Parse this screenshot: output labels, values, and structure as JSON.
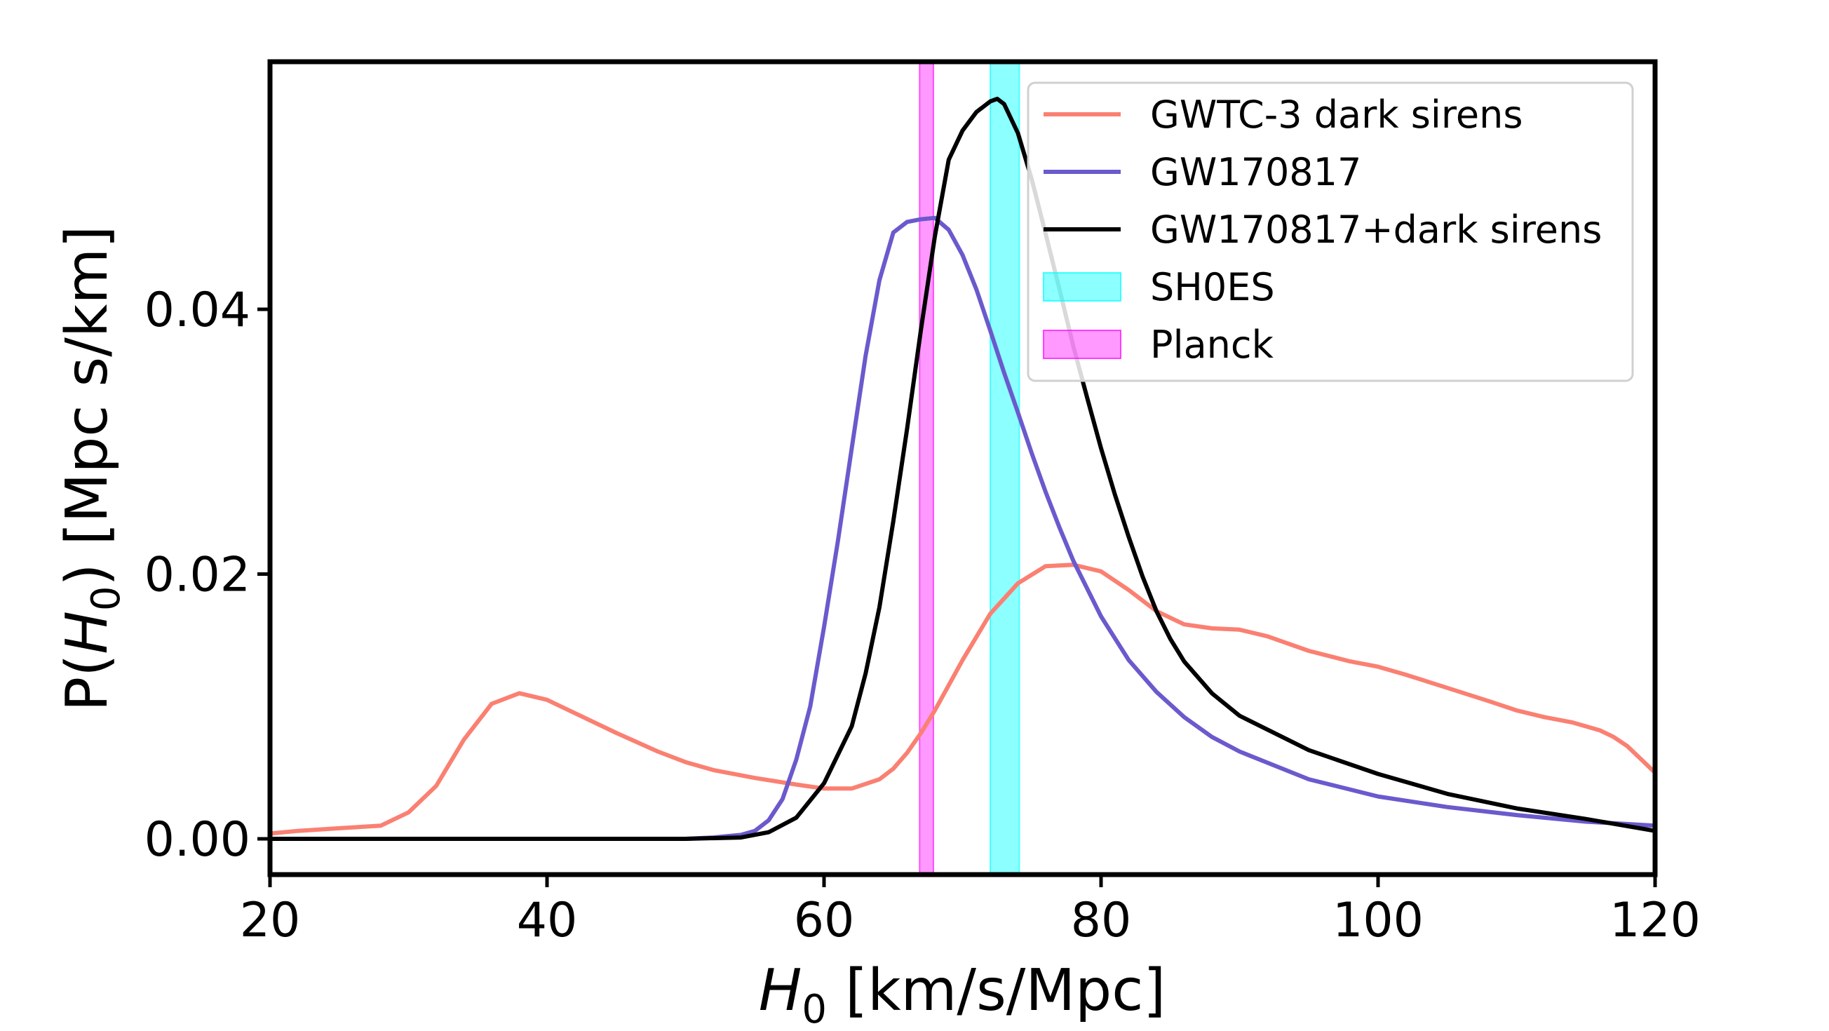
{
  "chart_data": {
    "type": "line",
    "title": "",
    "xlabel_symbol": "H",
    "xlabel_subscript": "0",
    "xlabel_unit": " [km/s/Mpc]",
    "ylabel_prefix": "P(",
    "ylabel_symbol": "H",
    "ylabel_subscript": "0",
    "ylabel_suffix": ") [Mpc s/km]",
    "xlim": [
      20,
      120
    ],
    "ylim": [
      -0.0027,
      0.0587
    ],
    "xticks": [
      20,
      40,
      60,
      80,
      100,
      120
    ],
    "xtick_labels": [
      "20",
      "40",
      "60",
      "80",
      "100",
      "120"
    ],
    "yticks": [
      0.0,
      0.02,
      0.04
    ],
    "ytick_labels": [
      "0.00",
      "0.02",
      "0.04"
    ],
    "legend_position": "top-right",
    "bands": [
      {
        "name": "SH0ES",
        "xmin": 72.0,
        "xmax": 74.1,
        "color": "#00ffff",
        "alpha": 0.45
      },
      {
        "name": "Planck",
        "xmin": 66.9,
        "xmax": 67.9,
        "color": "#ff00ff",
        "alpha": 0.4
      }
    ],
    "series": [
      {
        "name": "GWTC-3 dark sirens",
        "color": "#fa8072",
        "x": [
          20,
          22,
          25,
          28,
          30,
          32,
          34,
          36,
          38,
          40,
          42,
          45,
          48,
          50,
          52,
          55,
          58,
          60,
          62,
          64,
          65,
          66,
          67,
          68,
          70,
          72,
          74,
          76,
          78,
          80,
          82,
          84,
          86,
          88,
          90,
          92,
          95,
          98,
          100,
          102,
          105,
          108,
          110,
          112,
          114,
          116,
          117,
          118,
          119,
          120
        ],
        "values": [
          0.0004,
          0.0006,
          0.0008,
          0.001,
          0.002,
          0.004,
          0.0075,
          0.0102,
          0.011,
          0.0105,
          0.0095,
          0.008,
          0.0066,
          0.0058,
          0.0052,
          0.0046,
          0.0041,
          0.0038,
          0.0038,
          0.0045,
          0.0053,
          0.0065,
          0.008,
          0.0097,
          0.0135,
          0.017,
          0.0193,
          0.0206,
          0.0207,
          0.0202,
          0.0188,
          0.0172,
          0.0162,
          0.0159,
          0.0158,
          0.0153,
          0.0142,
          0.0134,
          0.013,
          0.0124,
          0.0114,
          0.0104,
          0.0097,
          0.0092,
          0.0088,
          0.0082,
          0.0077,
          0.007,
          0.006,
          0.005
        ]
      },
      {
        "name": "GW170817",
        "color": "#6a5acd",
        "x": [
          20,
          40,
          50,
          52,
          54,
          55,
          56,
          57,
          58,
          59,
          60,
          61,
          62,
          63,
          64,
          65,
          66,
          67,
          68,
          69,
          70,
          71,
          72,
          73,
          74,
          75,
          76,
          77,
          78,
          80,
          82,
          84,
          86,
          88,
          90,
          95,
          100,
          105,
          110,
          115,
          120
        ],
        "values": [
          0.0,
          0.0,
          0.0,
          0.0001,
          0.0003,
          0.0006,
          0.0014,
          0.003,
          0.006,
          0.01,
          0.016,
          0.0225,
          0.0295,
          0.0365,
          0.0422,
          0.0458,
          0.0466,
          0.0468,
          0.0469,
          0.046,
          0.0441,
          0.0415,
          0.0384,
          0.0352,
          0.0322,
          0.0291,
          0.0262,
          0.0235,
          0.021,
          0.0168,
          0.0135,
          0.0111,
          0.0092,
          0.0077,
          0.0066,
          0.0045,
          0.0032,
          0.0024,
          0.0018,
          0.0013,
          0.001
        ]
      },
      {
        "name": "GW170817+dark sirens",
        "color": "#000000",
        "x": [
          20,
          50,
          54,
          56,
          58,
          60,
          62,
          63,
          64,
          65,
          66,
          67,
          68,
          69,
          70,
          71,
          72,
          72.5,
          73,
          74,
          75,
          76,
          77,
          78,
          79,
          80,
          81,
          82,
          83,
          84,
          85,
          86,
          88,
          90,
          95,
          100,
          105,
          110,
          115,
          120
        ],
        "values": [
          0.0,
          0.0,
          0.0001,
          0.0005,
          0.0016,
          0.0042,
          0.0085,
          0.0125,
          0.0175,
          0.024,
          0.031,
          0.0385,
          0.0455,
          0.0513,
          0.0535,
          0.0549,
          0.0557,
          0.0559,
          0.0555,
          0.0533,
          0.0498,
          0.0457,
          0.0415,
          0.0372,
          0.0333,
          0.0295,
          0.026,
          0.0228,
          0.0198,
          0.0172,
          0.0151,
          0.0134,
          0.011,
          0.0093,
          0.0067,
          0.0049,
          0.0034,
          0.0023,
          0.0015,
          0.0006
        ]
      }
    ]
  }
}
